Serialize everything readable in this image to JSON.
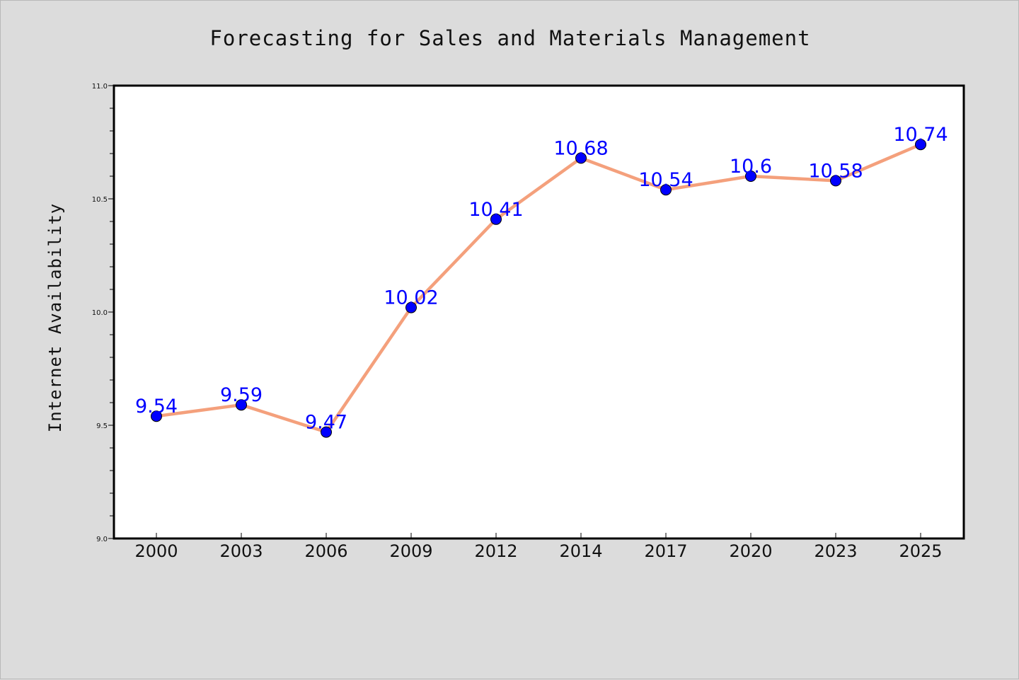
{
  "chart_data": {
    "type": "line",
    "title": "Forecasting for Sales and Materials Management",
    "xlabel": "",
    "ylabel": "Internet Availability",
    "categories": [
      "2000",
      "2003",
      "2006",
      "2009",
      "2012",
      "2014",
      "2017",
      "2020",
      "2023",
      "2025"
    ],
    "series": [
      {
        "values": [
          9.54,
          9.59,
          9.47,
          10.02,
          10.41,
          10.68,
          10.54,
          10.6,
          10.58,
          10.74
        ],
        "line_color": "#f4a07c",
        "marker_color": "#0000ff"
      }
    ],
    "data_labels": [
      "9.54",
      "9.59",
      "9.47",
      "10.02",
      "10.41",
      "10.68",
      "10.54",
      "10.6",
      "10.58",
      "10.74"
    ],
    "ylim": [
      9.0,
      11.0
    ],
    "yticks": [
      "9.0",
      "9.5",
      "10.0",
      "10.5",
      "11.0"
    ],
    "grid": false,
    "legend": "none",
    "background": "#dcdcdc",
    "plot_background": "#ffffff"
  }
}
